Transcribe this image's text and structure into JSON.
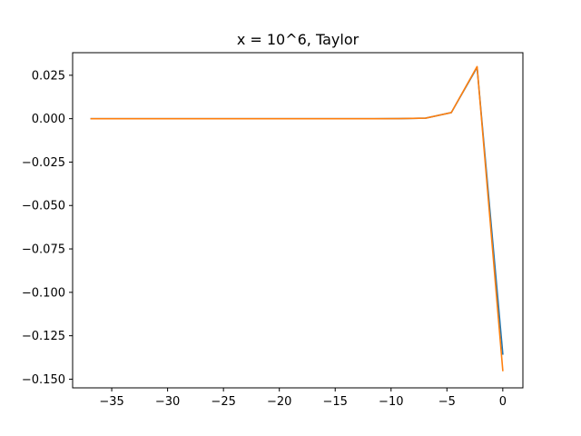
{
  "chart_data": {
    "type": "line",
    "title": "x = 10^6, Taylor",
    "xlabel": "",
    "ylabel": "",
    "xlim": [
      -38.5,
      1.8
    ],
    "ylim": [
      -0.155,
      0.038
    ],
    "xticks": [
      -35,
      -30,
      -25,
      -20,
      -15,
      -10,
      -5,
      0
    ],
    "xtick_labels": [
      "−35",
      "−30",
      "−25",
      "−20",
      "−15",
      "−10",
      "−5",
      "0"
    ],
    "yticks": [
      0.025,
      0.0,
      -0.025,
      -0.05,
      -0.075,
      -0.1,
      -0.125,
      -0.15
    ],
    "ytick_labels": [
      "0.025",
      "0.000",
      "−0.025",
      "−0.050",
      "−0.075",
      "−0.100",
      "−0.125",
      "−0.150"
    ],
    "grid": false,
    "legend": "none",
    "series": [
      {
        "color": "#1f77b4",
        "x": [
          -36.84,
          -34.54,
          -32.24,
          -29.93,
          -27.63,
          -25.33,
          -23.03,
          -20.72,
          -18.42,
          -16.12,
          -13.82,
          -11.51,
          -9.21,
          -6.91,
          -4.61,
          -2.3,
          0.0
        ],
        "y": [
          0,
          0,
          0,
          0,
          0,
          0,
          0,
          0,
          0,
          0,
          0,
          0,
          2e-05,
          0.0003,
          0.0035,
          0.0295,
          -0.1355
        ]
      },
      {
        "color": "#ff7f0e",
        "x": [
          -36.84,
          -34.54,
          -32.24,
          -29.93,
          -27.63,
          -25.33,
          -23.03,
          -20.72,
          -18.42,
          -16.12,
          -13.82,
          -11.51,
          -9.21,
          -6.91,
          -4.61,
          -2.3,
          0.0
        ],
        "y": [
          0,
          0,
          0,
          0,
          0,
          0,
          0,
          0,
          0,
          0,
          0,
          0,
          2e-05,
          0.0003,
          0.0035,
          0.03,
          -0.145
        ]
      }
    ]
  }
}
